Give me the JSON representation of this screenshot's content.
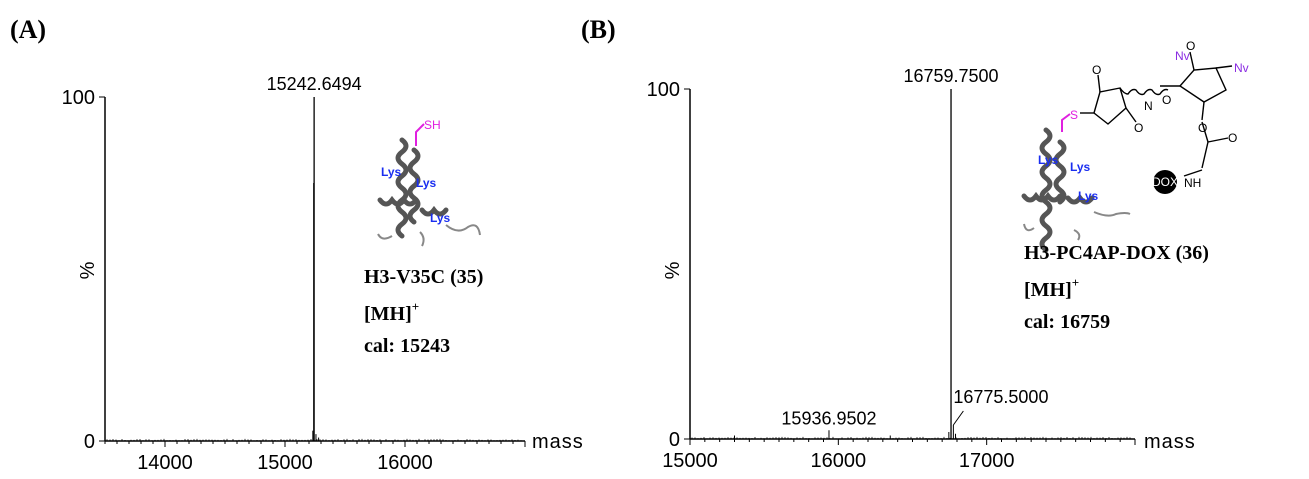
{
  "panels": [
    {
      "label": "(A)",
      "compound": "H3-V35C (35)",
      "ion": "[MH]",
      "ion_sup": "+",
      "cal": "cal: 15243",
      "structure": {
        "thiol": "SH",
        "lys": [
          "Lys",
          "Lys",
          "Lys"
        ]
      }
    },
    {
      "label": "(B)",
      "compound": "H3-PC4AP-DOX (36)",
      "ion": "[MH]",
      "ion_sup": "+",
      "cal": "cal: 16759",
      "structure": {
        "thioether": "S",
        "lys": [
          "Lys",
          "Lys",
          "Lys"
        ],
        "nv": [
          "Nv",
          "Nv"
        ],
        "dox": "DOX",
        "nh": "NH",
        "o": [
          "O",
          "O",
          "O",
          "O",
          "O",
          "O"
        ],
        "n": "N"
      }
    }
  ],
  "chart_data": [
    {
      "type": "line",
      "title": "",
      "xlabel": "mass",
      "ylabel": "%",
      "xlim": [
        13500,
        17000
      ],
      "ylim": [
        0,
        100
      ],
      "xticks": [
        14000,
        15000,
        16000
      ],
      "yticks": [
        0,
        100
      ],
      "grid": false,
      "series": [
        {
          "peaks": [
            {
              "x": 15242.6494,
              "y": 100,
              "label": "15242.6494"
            },
            {
              "x": 15240,
              "y": 75
            },
            {
              "x": 15232,
              "y": 3
            },
            {
              "x": 15258,
              "y": 2
            },
            {
              "x": 15280,
              "y": 1
            }
          ]
        }
      ]
    },
    {
      "type": "line",
      "title": "",
      "xlabel": "mass",
      "ylabel": "%",
      "xlim": [
        15000,
        18000
      ],
      "ylim": [
        0,
        100
      ],
      "xticks": [
        15000,
        16000,
        17000
      ],
      "yticks": [
        0,
        100
      ],
      "grid": false,
      "series": [
        {
          "peaks": [
            {
              "x": 16759.75,
              "y": 100,
              "label": "16759.7500"
            },
            {
              "x": 16775.5,
              "y": 4,
              "label": "16775.5000"
            },
            {
              "x": 15936.9502,
              "y": 2.5,
              "label": "15936.9502"
            },
            {
              "x": 16745,
              "y": 2
            },
            {
              "x": 16790,
              "y": 1.5
            },
            {
              "x": 15300,
              "y": 1
            },
            {
              "x": 16350,
              "y": 1
            }
          ]
        }
      ]
    }
  ]
}
